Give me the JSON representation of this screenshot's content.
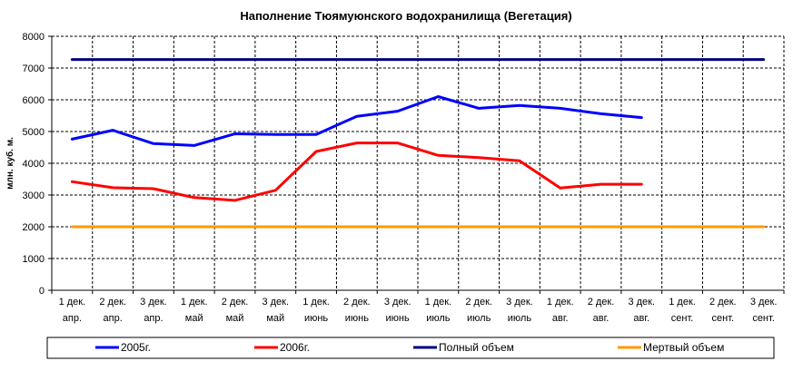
{
  "chart_data": {
    "type": "line",
    "title": "Наполнение Тюямуюнского водохранилища (Вегетация)",
    "xlabel": "",
    "ylabel": "млн. куб. м.",
    "ylim": [
      0,
      8000
    ],
    "yticks": [
      "0",
      "1000",
      "2000",
      "3000",
      "4000",
      "5000",
      "6000",
      "7000",
      "8000"
    ],
    "grid": true,
    "legend_position": "bottom",
    "categories": [
      {
        "line1": "1 дек.",
        "line2": "апр."
      },
      {
        "line1": "2 дек.",
        "line2": "апр."
      },
      {
        "line1": "3 дек.",
        "line2": "апр."
      },
      {
        "line1": "1 дек.",
        "line2": "май"
      },
      {
        "line1": "2 дек.",
        "line2": "май"
      },
      {
        "line1": "3 дек.",
        "line2": "май"
      },
      {
        "line1": "1 дек.",
        "line2": "июнь"
      },
      {
        "line1": "2 дек.",
        "line2": "июнь"
      },
      {
        "line1": "3 дек.",
        "line2": "июнь"
      },
      {
        "line1": "1 дек.",
        "line2": "июль"
      },
      {
        "line1": "2 дек.",
        "line2": "июль"
      },
      {
        "line1": "3 дек.",
        "line2": "июль"
      },
      {
        "line1": "1 дек.",
        "line2": "авг."
      },
      {
        "line1": "2 дек.",
        "line2": "авг."
      },
      {
        "line1": "3 дек.",
        "line2": "авг."
      },
      {
        "line1": "1 дек.",
        "line2": "сент."
      },
      {
        "line1": "2 дек.",
        "line2": "сент."
      },
      {
        "line1": "3 дек.",
        "line2": "сент."
      }
    ],
    "series": [
      {
        "name": "2005г.",
        "color": "#0000ff",
        "values": [
          4760,
          5040,
          4620,
          4560,
          4930,
          4910,
          4910,
          5480,
          5640,
          6100,
          5730,
          5820,
          5730,
          5560,
          5440,
          null,
          null,
          null
        ]
      },
      {
        "name": "2006г.",
        "color": "#ff0000",
        "values": [
          3420,
          3230,
          3200,
          2920,
          2830,
          3150,
          4370,
          4640,
          4640,
          4250,
          4180,
          4080,
          3220,
          3340,
          3340,
          null,
          null,
          null
        ]
      },
      {
        "name": "Полный объем",
        "color": "#000080",
        "values": [
          7270,
          7270,
          7270,
          7270,
          7270,
          7270,
          7270,
          7270,
          7270,
          7270,
          7270,
          7270,
          7270,
          7270,
          7270,
          7270,
          7270,
          7270
        ]
      },
      {
        "name": "Мертвый объем",
        "color": "#ff9900",
        "values": [
          2000,
          2000,
          2000,
          2000,
          2000,
          2000,
          2000,
          2000,
          2000,
          2000,
          2000,
          2000,
          2000,
          2000,
          2000,
          2000,
          2000,
          2000
        ]
      }
    ]
  }
}
